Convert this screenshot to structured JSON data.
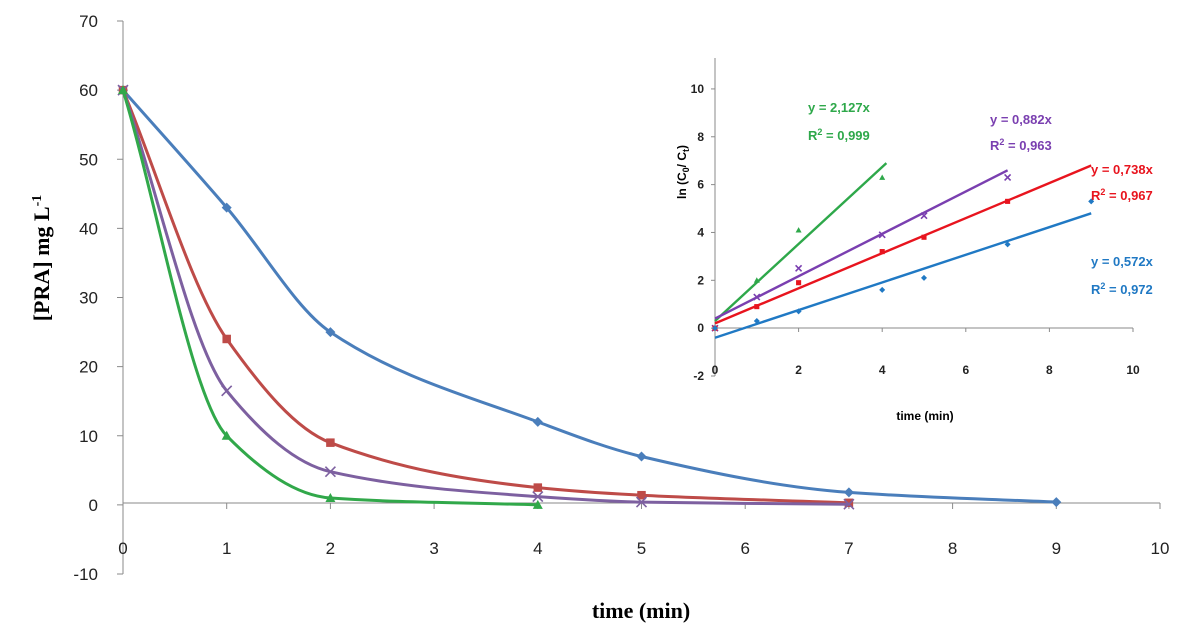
{
  "chart_data": [
    {
      "type": "line",
      "xlabel": "time (min)",
      "ylabel": "[PRA] mg L",
      "ylabel_sup": "-1",
      "xlim": [
        0,
        10
      ],
      "ylim": [
        -10,
        70
      ],
      "xticks": [
        0,
        1,
        2,
        3,
        4,
        5,
        6,
        7,
        8,
        9,
        10
      ],
      "yticks": [
        -10,
        0,
        10,
        20,
        30,
        40,
        50,
        60,
        70
      ],
      "grid": false,
      "series": [
        {
          "color": "#4a7ebb",
          "marker": "diamond",
          "x": [
            0,
            1,
            2,
            4,
            5,
            7,
            9
          ],
          "y": [
            60,
            43,
            25,
            12,
            7,
            1.8,
            0.4
          ]
        },
        {
          "color": "#be4b48",
          "marker": "square",
          "x": [
            0,
            1,
            2,
            4,
            5,
            7
          ],
          "y": [
            60,
            24,
            9,
            2.5,
            1.4,
            0.3
          ]
        },
        {
          "color": "#7d60a0",
          "marker": "x",
          "x": [
            0,
            1,
            2,
            4,
            5,
            7
          ],
          "y": [
            60,
            16.5,
            4.8,
            1.2,
            0.4,
            0.1
          ]
        },
        {
          "color": "#31a84a",
          "marker": "triangle",
          "x": [
            0,
            1,
            2,
            4
          ],
          "y": [
            60,
            10,
            1,
            0
          ]
        }
      ]
    },
    {
      "type": "scatter",
      "xlabel": "time (min)",
      "ylabel_parts": [
        "ln (C",
        "0",
        "/ C",
        "t",
        ")"
      ],
      "xlim": [
        0,
        10
      ],
      "ylim": [
        -2,
        11
      ],
      "xticks": [
        0,
        2,
        4,
        6,
        8,
        10
      ],
      "yticks": [
        -2,
        0,
        2,
        4,
        6,
        8,
        10
      ],
      "grid": false,
      "series": [
        {
          "color": "#2ea84a",
          "marker": "triangle",
          "x": [
            0,
            1,
            2,
            4
          ],
          "y": [
            0,
            2,
            4.1,
            6.3
          ],
          "fit_x": [
            0,
            4.1
          ],
          "fit_y": [
            0.3,
            6.9
          ],
          "equation": "y = 2,127x",
          "r2_label": "R",
          "r2_value": " = 0,999"
        },
        {
          "color": "#7a3fb0",
          "marker": "x",
          "x": [
            0,
            1,
            2,
            4,
            5,
            7
          ],
          "y": [
            0,
            1.3,
            2.5,
            3.9,
            4.7,
            6.3
          ],
          "fit_x": [
            0,
            7
          ],
          "fit_y": [
            0.4,
            6.6
          ],
          "equation": "y = 0,882x",
          "r2_label": "R",
          "r2_value": " = 0,963"
        },
        {
          "color": "#e8141e",
          "marker": "square",
          "x": [
            0,
            1,
            2,
            4,
            5,
            7
          ],
          "y": [
            0,
            0.9,
            1.9,
            3.2,
            3.8,
            5.3
          ],
          "fit_x": [
            0,
            9
          ],
          "fit_y": [
            0.2,
            6.8
          ],
          "equation": "y = 0,738x",
          "r2_label": "R",
          "r2_value": " = 0,967"
        },
        {
          "color": "#2079c4",
          "marker": "diamond",
          "x": [
            0,
            1,
            2,
            4,
            5,
            7,
            9
          ],
          "y": [
            0,
            0.3,
            0.7,
            1.6,
            2.1,
            3.5,
            5.3
          ],
          "fit_x": [
            0,
            9
          ],
          "fit_y": [
            -0.4,
            4.8
          ],
          "equation": "y = 0,572x",
          "r2_label": "R",
          "r2_value": " = 0,972"
        }
      ]
    }
  ]
}
